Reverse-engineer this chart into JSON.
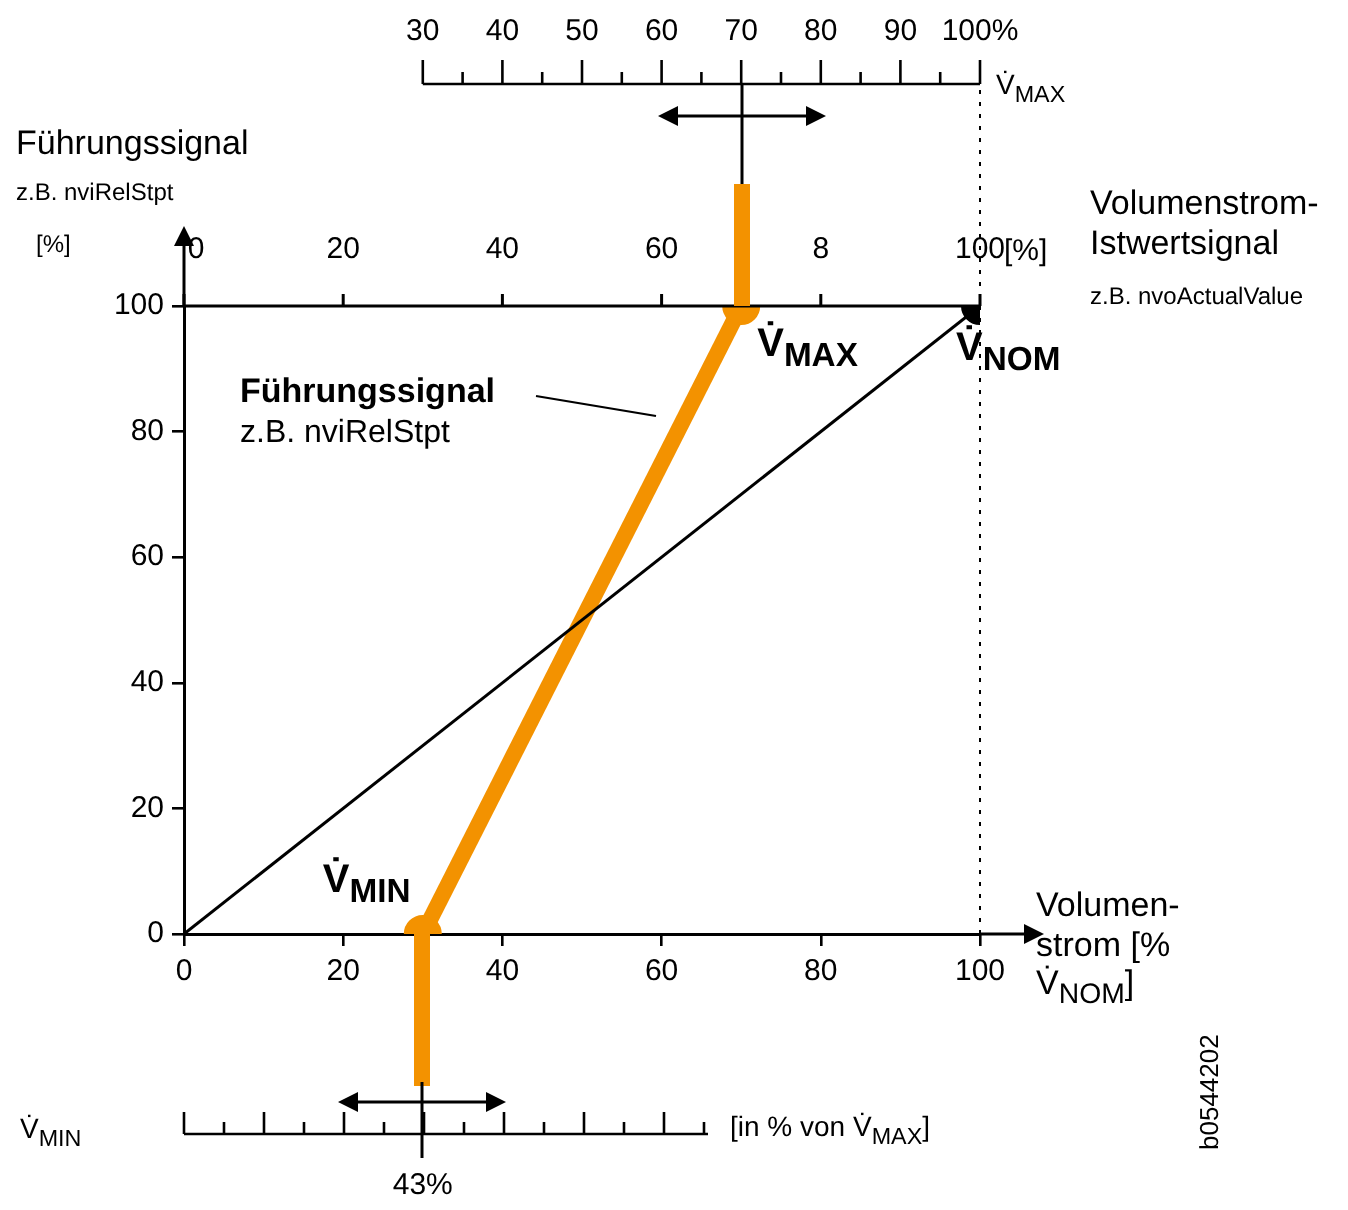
{
  "chart_data": {
    "type": "line",
    "xlabel": "Volumen-strom [% V̇$_{NOM}$]",
    "ylabel": "Führungssignal",
    "x2label": "V̇$_{MAX}$",
    "xlim": [
      0,
      100
    ],
    "xticks": [
      0,
      20,
      40,
      60,
      80,
      100
    ],
    "ylim": [
      0,
      100
    ],
    "yticks": [
      0,
      20,
      40,
      60,
      80,
      100
    ],
    "x2lim": [
      30,
      100
    ],
    "x2ticks": [
      30,
      40,
      50,
      60,
      70,
      80,
      90,
      {
        "value": 100,
        "label": "100%"
      }
    ],
    "series": [
      {
        "type": "line",
        "color": "#000000",
        "x": [
          0,
          100
        ],
        "values": [
          0,
          100
        ]
      },
      {
        "type": "line",
        "color": "#f39200",
        "x": [
          30,
          70
        ],
        "values": [
          0,
          100
        ]
      },
      {
        "type": "scatter",
        "marker": "circle",
        "colors": [
          "#f39200",
          "#f39200",
          "#000000"
        ],
        "x": [
          30,
          70,
          100
        ],
        "values": [
          0,
          100,
          100
        ]
      }
    ],
    "ref_lines": [
      {
        "axis": "x",
        "value": 100,
        "line_style": "dotted",
        "color": "#000000"
      }
    ],
    "annotations": [
      {
        "text": "V̇$_{MAX}$",
        "x": 70,
        "y": 100
      },
      {
        "text": "V̇$_{MIN}$",
        "x": 30,
        "y": 0
      },
      {
        "text": "V̇$_{NOM}$",
        "x": 100,
        "y": 100
      },
      "0",
      "20",
      "40",
      "60",
      "8",
      "100",
      "[%]",
      "z.B. nviRelStpt",
      "[%]",
      "Führungssignal",
      "z.B. nviRelStpt",
      "z.B. nvoActualValue",
      "V̇$_{MIN}$",
      "[in % von V̇$_{MAX}$]",
      "43%",
      "b0544202",
      "Volumenstrom-Istwertsignal"
    ]
  }
}
